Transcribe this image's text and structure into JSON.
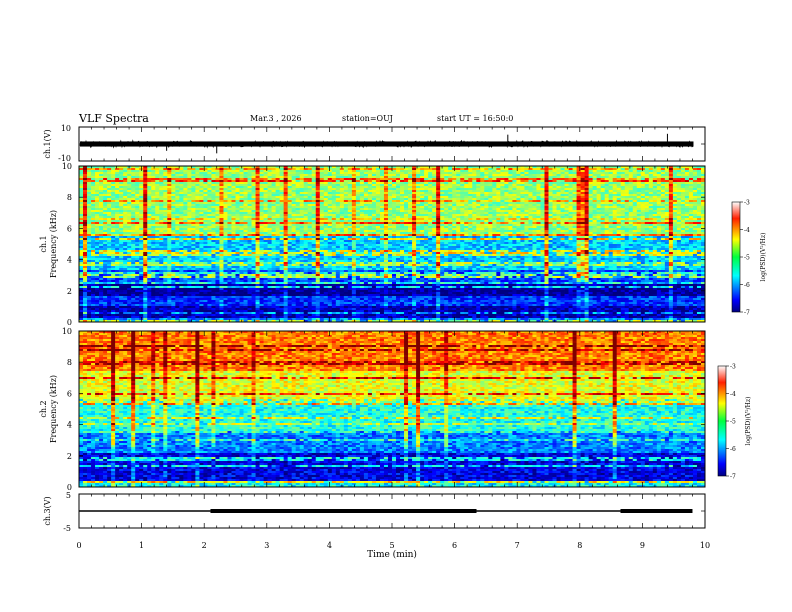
{
  "header": {
    "title": "VLF Spectra",
    "date": "Mar.3 , 2026",
    "station": "station=OUJ",
    "start": "start UT = 16:50:0"
  },
  "colors": {
    "colormap": [
      "#000080",
      "#0000ff",
      "#0080ff",
      "#00ffff",
      "#00ff80",
      "#80ff00",
      "#ffff00",
      "#ff8000",
      "#ff0000",
      "#ffffff"
    ]
  },
  "chart_data": [
    {
      "type": "line",
      "panel": "ch1-waveform",
      "ylabel": "ch.1(V)",
      "xlim": [
        0,
        10
      ],
      "ylim": [
        -10,
        10
      ],
      "y_ticks": [
        "10",
        "-10"
      ],
      "signal_level_V": [
        -1.5,
        1.5
      ]
    },
    {
      "type": "heatmap",
      "panel": "ch1-spectrogram",
      "ylabel": "ch.1\nFrequency (kHz)",
      "xlim": [
        0,
        10
      ],
      "ylim": [
        0,
        10
      ],
      "x_ticks": [
        "0",
        "1",
        "2",
        "3",
        "4",
        "5",
        "6",
        "7",
        "8",
        "9",
        "10"
      ],
      "y_ticks": [
        "0",
        "2",
        "4",
        "6",
        "8",
        "10"
      ],
      "colorbar": {
        "label": "log(PSD)(V²/Hz)",
        "range": [
          -7,
          -3
        ],
        "ticks": [
          "-3",
          "-4",
          "-5",
          "-6",
          "-7"
        ]
      },
      "bands": [
        {
          "f": [
            0,
            0.3
          ],
          "v": -6.0
        },
        {
          "f": [
            0.3,
            1.0
          ],
          "v": -6.8
        },
        {
          "f": [
            1.0,
            1.7
          ],
          "v": -6.3
        },
        {
          "f": [
            1.7,
            2.4
          ],
          "v": -6.9
        },
        {
          "f": [
            2.4,
            3.3
          ],
          "v": -6.2
        },
        {
          "f": [
            3.3,
            5.5
          ],
          "v": -5.7
        },
        {
          "f": [
            5.5,
            10.0
          ],
          "v": -4.9
        }
      ]
    },
    {
      "type": "heatmap",
      "panel": "ch2-spectrogram",
      "ylabel": "ch.2\nFrequency (kHz)",
      "xlim": [
        0,
        10
      ],
      "ylim": [
        0,
        10
      ],
      "x_ticks": [
        "0",
        "1",
        "2",
        "3",
        "4",
        "5",
        "6",
        "7",
        "8",
        "9",
        "10"
      ],
      "y_ticks": [
        "0",
        "2",
        "4",
        "6",
        "8",
        "10"
      ],
      "colorbar": {
        "label": "log(PSD)(V²/Hz)",
        "range": [
          -7,
          -3
        ],
        "ticks": [
          "-3",
          "-4",
          "-5",
          "-6",
          "-7"
        ]
      },
      "bands": [
        {
          "f": [
            0,
            0.4
          ],
          "v": -5.5
        },
        {
          "f": [
            0.4,
            2.2
          ],
          "v": -6.6
        },
        {
          "f": [
            2.2,
            3.6
          ],
          "v": -6.0
        },
        {
          "f": [
            3.6,
            5.6
          ],
          "v": -5.4
        },
        {
          "f": [
            5.6,
            7.5
          ],
          "v": -4.6
        },
        {
          "f": [
            7.5,
            10.0
          ],
          "v": -4.0
        }
      ]
    },
    {
      "type": "line",
      "panel": "ch3-trigger",
      "ylabel": "ch.3(V)",
      "xlabel": "Time (min)",
      "xlim": [
        0,
        10
      ],
      "ylim": [
        -5,
        5
      ],
      "x_ticks": [
        "0",
        "1",
        "2",
        "3",
        "4",
        "5",
        "6",
        "7",
        "8",
        "9",
        "10"
      ],
      "y_ticks": [
        "5",
        "-5"
      ],
      "segments": [
        {
          "x": [
            0.0,
            2.1
          ],
          "y": 0
        },
        {
          "x": [
            2.1,
            6.35
          ],
          "y": 0.3
        },
        {
          "x": [
            6.35,
            8.65
          ],
          "y": 0
        },
        {
          "x": [
            8.65,
            9.8
          ],
          "y": 0.3
        }
      ]
    }
  ]
}
